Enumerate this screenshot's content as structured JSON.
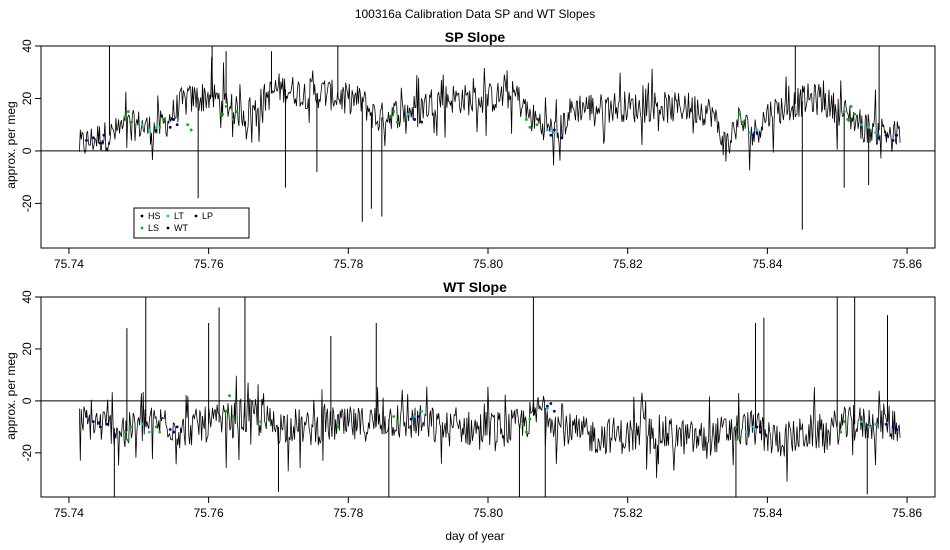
{
  "figure": {
    "suptitle": "100316a   Calibration Data SP and WT Slopes",
    "xlabel": "day of year"
  },
  "chart_data": [
    {
      "type": "line",
      "title": "SP Slope",
      "xlabel": "",
      "ylabel": "approx. per meg",
      "xlim": [
        75.736,
        75.864
      ],
      "ylim": [
        -37,
        40
      ],
      "x_ticks": [
        "75.74",
        "75.76",
        "75.78",
        "75.80",
        "75.82",
        "75.84",
        "75.86"
      ],
      "y_ticks": [
        "-20",
        "0",
        "20",
        "40"
      ],
      "reference_line_y": 0,
      "legend": {
        "position": "bottom-left",
        "entries": [
          {
            "label": "HS",
            "color": "#000000"
          },
          {
            "label": "LT",
            "color": "#00cccc"
          },
          {
            "label": "LP",
            "color": "#000000"
          },
          {
            "label": "LS",
            "color": "#00bb00"
          },
          {
            "label": "WT",
            "color": "#000000"
          }
        ]
      },
      "series": [
        {
          "name": "WT",
          "color": "#000000",
          "x": [
            75.7415,
            75.744,
            75.746,
            75.748,
            75.75,
            75.752,
            75.754,
            75.756,
            75.758,
            75.76,
            75.762,
            75.764,
            75.766,
            75.768,
            75.77,
            75.772,
            75.774,
            75.776,
            75.778,
            75.78,
            75.782,
            75.784,
            75.786,
            75.788,
            75.79,
            75.792,
            75.794,
            75.796,
            75.798,
            75.8,
            75.802,
            75.804,
            75.806,
            75.808,
            75.81,
            75.812,
            75.814,
            75.816,
            75.818,
            75.82,
            75.822,
            75.824,
            75.826,
            75.828,
            75.83,
            75.832,
            75.834,
            75.836,
            75.838,
            75.84,
            75.842,
            75.844,
            75.846,
            75.848,
            75.85,
            75.852,
            75.854,
            75.856,
            75.858,
            75.859
          ],
          "y": [
            2,
            5,
            6,
            9,
            10,
            8,
            11,
            18,
            20,
            21,
            19,
            15,
            14,
            20,
            24,
            23,
            22,
            22,
            21,
            20,
            19,
            12,
            14,
            15,
            16,
            19,
            20,
            20,
            19,
            20,
            21,
            21,
            13,
            10,
            6,
            16,
            17,
            16,
            17,
            17,
            16,
            18,
            16,
            17,
            16,
            15,
            2,
            12,
            6,
            14,
            16,
            18,
            20,
            19,
            16,
            13,
            9,
            8,
            6,
            6
          ],
          "spread": 6,
          "spikes": [
            [
              75.7458,
              45
            ],
            [
              75.7585,
              -18
            ],
            [
              75.7605,
              41
            ],
            [
              75.7625,
              38
            ],
            [
              75.769,
              38
            ],
            [
              75.771,
              -14
            ],
            [
              75.7755,
              -8
            ],
            [
              75.7785,
              42
            ],
            [
              75.782,
              -27
            ],
            [
              75.7833,
              -22
            ],
            [
              75.7848,
              -25
            ],
            [
              75.845,
              -30
            ],
            [
              75.844,
              45
            ],
            [
              75.851,
              -14
            ],
            [
              75.8545,
              -13
            ],
            [
              75.856,
              40
            ]
          ]
        },
        {
          "name": "LS",
          "color": "#00bb00",
          "x": [
            75.748,
            75.7485,
            75.749,
            75.753,
            75.7535,
            75.757,
            75.7575,
            75.762,
            75.7625,
            75.7635,
            75.764,
            75.786,
            75.7865,
            75.787,
            75.8055,
            75.806,
            75.807,
            75.836,
            75.8365,
            75.851,
            75.8515,
            75.852,
            75.8525
          ],
          "y": [
            13,
            15,
            11,
            9,
            12,
            10,
            8,
            14,
            17,
            12,
            15,
            13,
            15,
            11,
            12,
            9,
            10,
            14,
            11,
            15,
            12,
            17,
            14
          ]
        },
        {
          "name": "LT",
          "color": "#00cccc",
          "x": [
            75.7505,
            75.7515,
            75.7525,
            75.7885,
            75.7895,
            75.8085,
            75.8095,
            75.8375,
            75.8385,
            75.8535,
            75.8545,
            75.8555
          ],
          "y": [
            10,
            8,
            9,
            14,
            12,
            8,
            7,
            7,
            8,
            10,
            9,
            7
          ]
        },
        {
          "name": "HS",
          "color": "#000080",
          "x": [
            75.7425,
            75.7435,
            75.7445,
            75.745,
            75.7545,
            75.755,
            75.7555,
            75.7895,
            75.7905,
            75.809,
            75.8095,
            75.8105,
            75.838,
            75.8385,
            75.856,
            75.857,
            75.858,
            75.8585
          ],
          "y": [
            4,
            5,
            3,
            6,
            9,
            12,
            10,
            12,
            11,
            6,
            8,
            5,
            6,
            7,
            5,
            6,
            4,
            6
          ]
        }
      ]
    },
    {
      "type": "line",
      "title": "WT Slope",
      "xlabel": "day of year",
      "ylabel": "approx. per meg",
      "xlim": [
        75.736,
        75.864
      ],
      "ylim": [
        -37,
        40
      ],
      "x_ticks": [
        "75.74",
        "75.76",
        "75.78",
        "75.80",
        "75.82",
        "75.84",
        "75.86"
      ],
      "y_ticks": [
        "-20",
        "0",
        "20",
        "40"
      ],
      "reference_line_y": 0,
      "series": [
        {
          "name": "WT",
          "color": "#000000",
          "x": [
            75.7415,
            75.744,
            75.746,
            75.748,
            75.75,
            75.752,
            75.754,
            75.756,
            75.758,
            75.76,
            75.762,
            75.764,
            75.766,
            75.768,
            75.77,
            75.772,
            75.774,
            75.776,
            75.778,
            75.78,
            75.782,
            75.784,
            75.786,
            75.788,
            75.79,
            75.792,
            75.794,
            75.796,
            75.798,
            75.8,
            75.802,
            75.804,
            75.806,
            75.808,
            75.81,
            75.812,
            75.814,
            75.816,
            75.818,
            75.82,
            75.822,
            75.824,
            75.826,
            75.828,
            75.83,
            75.832,
            75.834,
            75.836,
            75.838,
            75.84,
            75.842,
            75.844,
            75.846,
            75.848,
            75.85,
            75.852,
            75.854,
            75.856,
            75.858,
            75.859
          ],
          "y": [
            -8,
            -9,
            -10,
            -12,
            -10,
            -9,
            -8,
            -12,
            -10,
            -9,
            -8,
            -7,
            -6,
            -8,
            -10,
            -9,
            -11,
            -10,
            -9,
            -10,
            -9,
            -8,
            -7,
            -9,
            -8,
            -10,
            -11,
            -10,
            -11,
            -10,
            -11,
            -10,
            -7,
            -2,
            -9,
            -12,
            -13,
            -14,
            -13,
            -14,
            -13,
            -12,
            -13,
            -14,
            -15,
            -14,
            -12,
            -11,
            -10,
            -14,
            -15,
            -14,
            -12,
            -12,
            -10,
            -9,
            -9,
            -8,
            -8,
            -10
          ],
          "spread": 7,
          "spikes": [
            [
              75.7465,
              -38
            ],
            [
              75.7483,
              28
            ],
            [
              75.751,
              40
            ],
            [
              75.76,
              30
            ],
            [
              75.7615,
              36
            ],
            [
              75.7652,
              40
            ],
            [
              75.77,
              -35
            ],
            [
              75.7775,
              25
            ],
            [
              75.784,
              30
            ],
            [
              75.7858,
              -38
            ],
            [
              75.8045,
              -38
            ],
            [
              75.8065,
              40
            ],
            [
              75.8082,
              -38
            ],
            [
              75.8355,
              -38
            ],
            [
              75.8383,
              30
            ],
            [
              75.8395,
              32
            ],
            [
              75.85,
              40
            ],
            [
              75.8525,
              40
            ],
            [
              75.8543,
              -36
            ],
            [
              75.8572,
              33
            ]
          ]
        },
        {
          "name": "LS",
          "color": "#00bb00",
          "x": [
            75.748,
            75.7485,
            75.749,
            75.7525,
            75.753,
            75.7625,
            75.763,
            75.7635,
            75.7675,
            75.7785,
            75.7865,
            75.787,
            75.805,
            75.8055,
            75.806,
            75.8355,
            75.836,
            75.8505,
            75.851
          ],
          "y": [
            -12,
            -15,
            -10,
            -10,
            -12,
            -4,
            2,
            -6,
            -8,
            -10,
            -6,
            -8,
            -9,
            -12,
            -7,
            -10,
            -14,
            -12,
            -8
          ]
        },
        {
          "name": "LT",
          "color": "#00cccc",
          "x": [
            75.7505,
            75.7515,
            75.7895,
            75.7905,
            75.8085,
            75.837,
            75.838,
            75.8535,
            75.8545,
            75.8555
          ],
          "y": [
            -9,
            -12,
            -6,
            -4,
            -3,
            -12,
            -10,
            -8,
            -10,
            -9
          ]
        },
        {
          "name": "HS",
          "color": "#000080",
          "x": [
            75.7425,
            75.7435,
            75.7445,
            75.7455,
            75.7545,
            75.755,
            75.7555,
            75.789,
            75.79,
            75.8085,
            75.809,
            75.8095,
            75.8385,
            75.839,
            75.857,
            75.858,
            75.8585
          ],
          "y": [
            -6,
            -8,
            -10,
            -9,
            -11,
            -12,
            -10,
            -7,
            -6,
            -2,
            -1,
            -4,
            -10,
            -12,
            -9,
            -10,
            -11
          ]
        }
      ]
    }
  ]
}
